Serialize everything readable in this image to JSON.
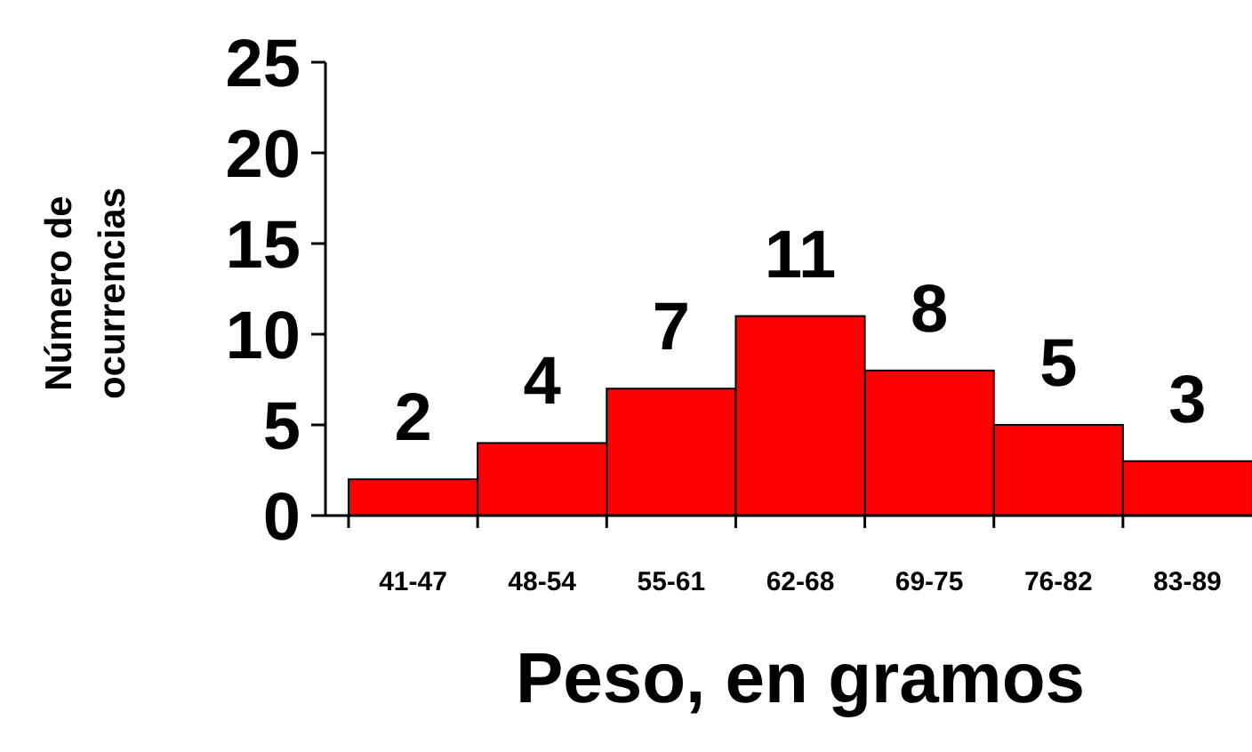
{
  "chart_data": {
    "type": "bar",
    "xlabel": "Peso, en gramos",
    "ylabel": "Número de ocurrencias",
    "categories": [
      "41-47",
      "48-54",
      "55-61",
      "62-68",
      "69-75",
      "76-82",
      "83-89"
    ],
    "values": [
      2,
      4,
      7,
      11,
      8,
      5,
      3
    ],
    "color": "#ff0000",
    "ylim": [
      0,
      25
    ],
    "yticks": [
      0,
      5,
      10,
      15,
      20,
      25
    ],
    "data_labels": true,
    "grid": false
  }
}
